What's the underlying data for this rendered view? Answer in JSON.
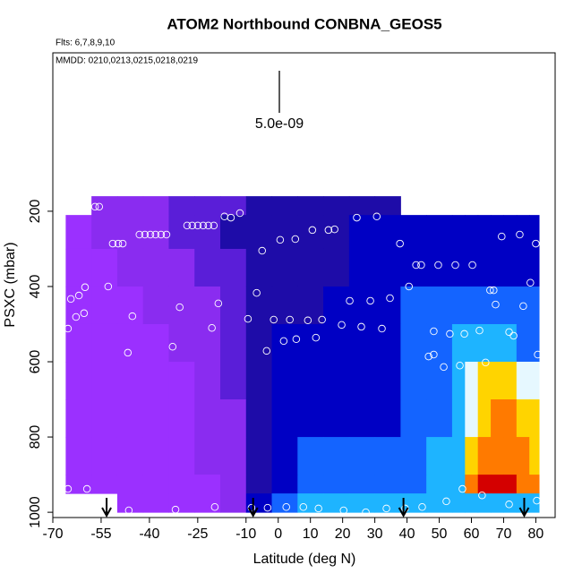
{
  "chart_data": {
    "type": "curtain",
    "title": "ATOM2 Northbound CONBNA_GEOS5",
    "subtitle": "Flts: 6,7,8,9,10",
    "annotation": "MMDD: 0210,0213,0215,0218,0219",
    "scale_label": "5.0e-09",
    "x_label": "Latitude (deg N)",
    "y_label": "PSXC (mbar)",
    "xlim": [
      -70,
      86
    ],
    "ylim": [
      1014,
      -221
    ],
    "xticks": [
      -70,
      -55,
      -40,
      -25,
      -10,
      0,
      10,
      20,
      30,
      40,
      50,
      60,
      70,
      80
    ],
    "yticks": [
      200,
      400,
      600,
      800,
      1000
    ],
    "colors": [
      "#9b30ff",
      "#8a2cf0",
      "#5a1ed8",
      "#1e0ca8",
      "#0000c4",
      "#1464ff",
      "#1eb4ff",
      "#e6f8ff",
      "#ffd400",
      "#ff7a00",
      "#d40000"
    ],
    "x_edges": [
      -66,
      -58,
      -50,
      -42,
      -34,
      -26,
      -18,
      -10,
      -2,
      6,
      14,
      22,
      30,
      38,
      46,
      54,
      58,
      62,
      66,
      70,
      74,
      78,
      81
    ],
    "p_edges": [
      160,
      210,
      300,
      400,
      500,
      600,
      700,
      800,
      900,
      950,
      1000
    ],
    "z": [
      [
        null,
        1,
        1,
        1,
        2,
        2,
        2,
        3,
        3,
        3,
        3,
        3,
        3,
        null,
        null,
        null,
        null,
        null,
        null,
        null,
        null,
        null
      ],
      [
        0,
        1,
        1,
        1,
        2,
        2,
        3,
        3,
        3,
        3,
        3,
        4,
        4,
        4,
        4,
        4,
        4,
        4,
        4,
        4,
        4,
        4
      ],
      [
        0,
        0,
        1,
        1,
        1,
        2,
        2,
        3,
        3,
        3,
        3,
        4,
        4,
        4,
        4,
        4,
        4,
        4,
        4,
        4,
        4,
        4
      ],
      [
        0,
        0,
        0,
        1,
        1,
        1,
        2,
        3,
        3,
        3,
        4,
        4,
        4,
        5,
        5,
        5,
        5,
        5,
        5,
        5,
        5,
        5
      ],
      [
        0,
        0,
        0,
        0,
        1,
        1,
        2,
        3,
        4,
        4,
        4,
        4,
        4,
        5,
        5,
        6,
        6,
        6,
        6,
        6,
        5,
        5
      ],
      [
        0,
        0,
        0,
        0,
        0,
        1,
        2,
        3,
        4,
        4,
        4,
        4,
        4,
        5,
        5,
        6,
        7,
        8,
        8,
        8,
        7,
        7
      ],
      [
        0,
        0,
        0,
        0,
        0,
        1,
        1,
        3,
        4,
        4,
        4,
        4,
        4,
        5,
        5,
        6,
        7,
        8,
        9,
        9,
        8,
        8
      ],
      [
        0,
        0,
        0,
        0,
        0,
        1,
        1,
        3,
        4,
        5,
        5,
        5,
        5,
        5,
        6,
        6,
        8,
        9,
        9,
        9,
        9,
        8
      ],
      [
        0,
        0,
        0,
        0,
        0,
        0,
        1,
        3,
        4,
        5,
        5,
        5,
        5,
        5,
        6,
        6,
        9,
        10,
        10,
        10,
        9,
        9
      ],
      [
        null,
        null,
        0,
        0,
        0,
        0,
        1,
        4,
        5,
        6,
        6,
        6,
        6,
        6,
        6,
        6,
        6,
        6,
        6,
        6,
        6,
        6
      ]
    ],
    "points": {
      "x": [
        -60.8,
        -56.9,
        -55.6,
        -51.4,
        -49.7,
        -48.3,
        -43.1,
        -41.4,
        -39.7,
        -38.1,
        -36.4,
        -34.7,
        -28.3,
        -26.7,
        -25,
        -23.3,
        -21.7,
        -20,
        -16.7,
        -14.7,
        -11.9,
        -5,
        0.6,
        5.3,
        10.6,
        15.6,
        17.5,
        24.4,
        30.6,
        37.8,
        42.8,
        44.4,
        49.7,
        55,
        60.3,
        69.4,
        75,
        80,
        -64.4,
        -62.8,
        -61.9,
        -60.3,
        -60,
        -52.8,
        -45.3,
        -32.8,
        -30.6,
        -20.6,
        -18.6,
        -9.4,
        -6.7,
        -1.4,
        1.7,
        3.6,
        5.6,
        9.2,
        11.7,
        13.6,
        19.7,
        22.2,
        25.8,
        28.6,
        32.2,
        34.7,
        40.6,
        48.3,
        46.7,
        48.3,
        51.4,
        53.3,
        56.4,
        57.8,
        62.5,
        64.4,
        65.8,
        66.9,
        67.5,
        71.7,
        73.1,
        76.1,
        78.3,
        80.6,
        -65.3,
        -46.7,
        -3.6,
        -65.3,
        -59.4,
        -46.4,
        -31.9,
        -19.7,
        -8.3,
        -3.3,
        2.5,
        7.8,
        12.5,
        20.3,
        27.2,
        33.6,
        39.4,
        44.7,
        52.2,
        57.2,
        63.3,
        71.7,
        80.3
      ],
      "y": [
        195,
        188,
        188,
        286,
        286,
        286,
        262,
        262,
        262,
        262,
        262,
        262,
        238,
        238,
        238,
        238,
        238,
        238,
        214,
        217,
        205,
        305,
        276,
        274,
        250,
        250,
        248,
        217,
        214,
        286,
        343,
        343,
        343,
        343,
        343,
        267,
        262,
        286,
        433,
        481,
        424,
        471,
        402,
        400,
        479,
        560,
        455,
        510,
        445,
        486,
        417,
        488,
        545,
        488,
        540,
        490,
        536,
        488,
        502,
        438,
        507,
        438,
        512,
        431,
        400,
        519,
        586,
        581,
        614,
        526,
        610,
        526,
        517,
        602,
        410,
        410,
        448,
        521,
        531,
        452,
        390,
        581,
        512,
        576,
        571,
        938,
        938,
        995,
        993,
        986,
        988,
        988,
        986,
        986,
        990,
        995,
        1000,
        990,
        990,
        986,
        971,
        938,
        955,
        979,
        969
      ]
    },
    "arrows_x": [
      -53.3,
      -7.8,
      38.9,
      76.4
    ]
  }
}
